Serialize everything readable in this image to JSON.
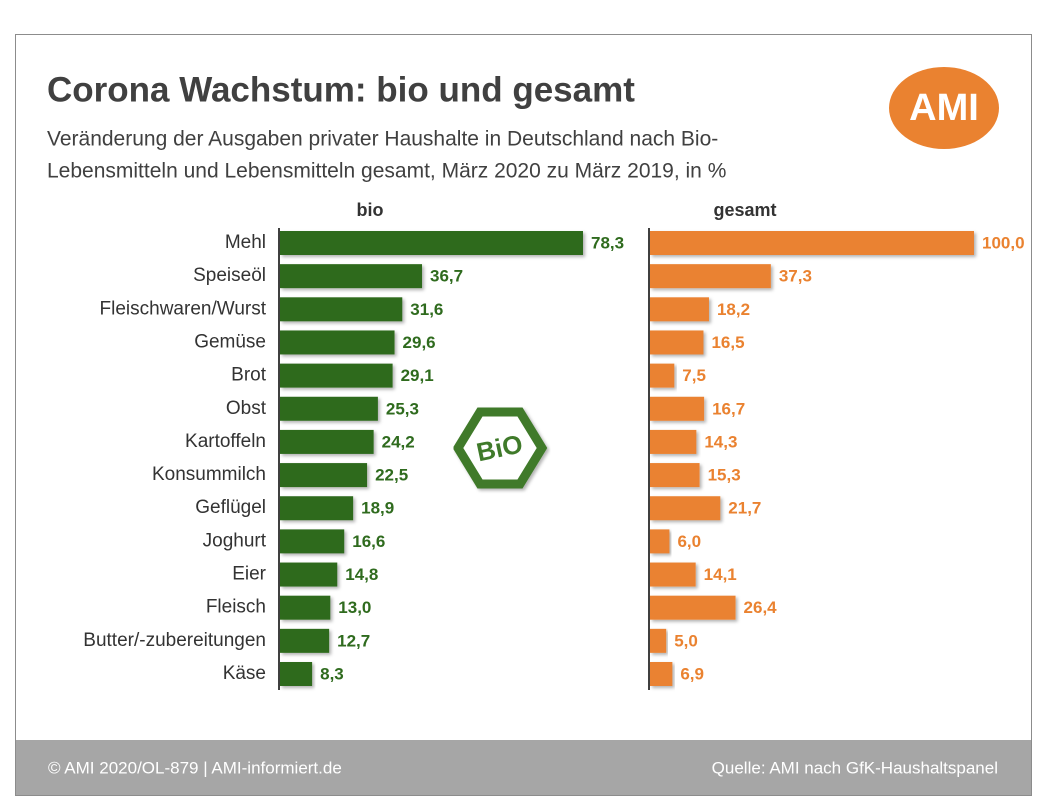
{
  "chart_data": {
    "type": "bar",
    "title": "Corona Wachstum: bio und gesamt",
    "subtitle": [
      "Veränderung der Ausgaben privater Haushalte in Deutschland nach Bio-",
      "Lebensmitteln und Lebensmitteln gesamt, März 2020 zu März 2019, in %"
    ],
    "categories": [
      "Mehl",
      "Speiseöl",
      "Fleischwaren/Wurst",
      "Gemüse",
      "Brot",
      "Obst",
      "Kartoffeln",
      "Konsummilch",
      "Geflügel",
      "Joghurt",
      "Eier",
      "Fleisch",
      "Butter/-zubereitungen",
      "Käse"
    ],
    "series": [
      {
        "name": "bio",
        "color": "#2f6b1e",
        "values": [
          78.3,
          36.7,
          31.6,
          29.6,
          29.1,
          25.3,
          24.2,
          22.5,
          18.9,
          16.6,
          14.8,
          13.0,
          12.7,
          8.3
        ],
        "value_labels": [
          "78,3",
          "36,7",
          "31,6",
          "29,6",
          "29,1",
          "25,3",
          "24,2",
          "22,5",
          "18,9",
          "16,6",
          "14,8",
          "13,0",
          "12,7",
          "8,3"
        ]
      },
      {
        "name": "gesamt",
        "color": "#ea8230",
        "values": [
          100.0,
          37.3,
          18.2,
          16.5,
          7.5,
          16.7,
          14.3,
          15.3,
          21.7,
          6.0,
          14.1,
          26.4,
          5.0,
          6.9
        ],
        "value_labels": [
          "100,0",
          "37,3",
          "18,2",
          "16,5",
          "7,5",
          "16,7",
          "14,3",
          "15,3",
          "21,7",
          "6,0",
          "14,1",
          "26,4",
          "5,0",
          "6,9"
        ]
      }
    ]
  },
  "logo": "AMI",
  "badge": "BiO",
  "footer": {
    "left": "© AMI 2020/OL-879 | AMI-informiert.de",
    "right": "Quelle:  AMI nach GfK-Haushaltspanel"
  }
}
